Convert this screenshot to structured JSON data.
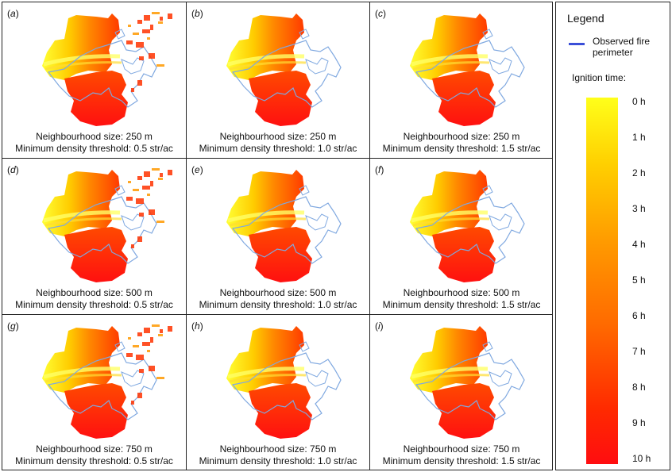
{
  "panels": [
    {
      "label": "a",
      "caption1": "Neighbourhood size: 250 m",
      "caption2": "Minimum density threshold: 0.5 str/ac",
      "spread": 3
    },
    {
      "label": "b",
      "caption1": "Neighbourhood size: 250 m",
      "caption2": "Minimum density threshold: 1.0 str/ac",
      "spread": 1
    },
    {
      "label": "c",
      "caption1": "Neighbourhood size: 250 m",
      "caption2": "Minimum density threshold: 1.5 str/ac",
      "spread": 1
    },
    {
      "label": "d",
      "caption1": "Neighbourhood size: 500 m",
      "caption2": "Minimum density threshold: 0.5 str/ac",
      "spread": 3
    },
    {
      "label": "e",
      "caption1": "Neighbourhood size: 500 m",
      "caption2": "Minimum density threshold: 1.0 str/ac",
      "spread": 1
    },
    {
      "label": "f",
      "caption1": "Neighbourhood size: 500 m",
      "caption2": "Minimum density threshold: 1.5 str/ac",
      "spread": 1
    },
    {
      "label": "g",
      "caption1": "Neighbourhood size: 750 m",
      "caption2": "Minimum density threshold: 0.5 str/ac",
      "spread": 3
    },
    {
      "label": "h",
      "caption1": "Neighbourhood size: 750 m",
      "caption2": "Minimum density threshold: 1.0 str/ac",
      "spread": 1
    },
    {
      "label": "i",
      "caption1": "Neighbourhood size: 750 m",
      "caption2": "Minimum density threshold: 1.5 str/ac",
      "spread": 1
    }
  ],
  "legend": {
    "title": "Legend",
    "observed_label": "Observed fire perimeter",
    "ignition_label": "Ignition time:",
    "ticks": [
      "0 h",
      "1 h",
      "2 h",
      "3 h",
      "4 h",
      "5 h",
      "6 h",
      "7 h",
      "8 h",
      "9 h",
      "10 h"
    ],
    "perimeter_color": "#3b4fd8"
  },
  "colors": {
    "early": "#ffff1a",
    "mid": "#ff9900",
    "late": "#ff0d10",
    "perimeter_map": "#7fa8e0"
  }
}
